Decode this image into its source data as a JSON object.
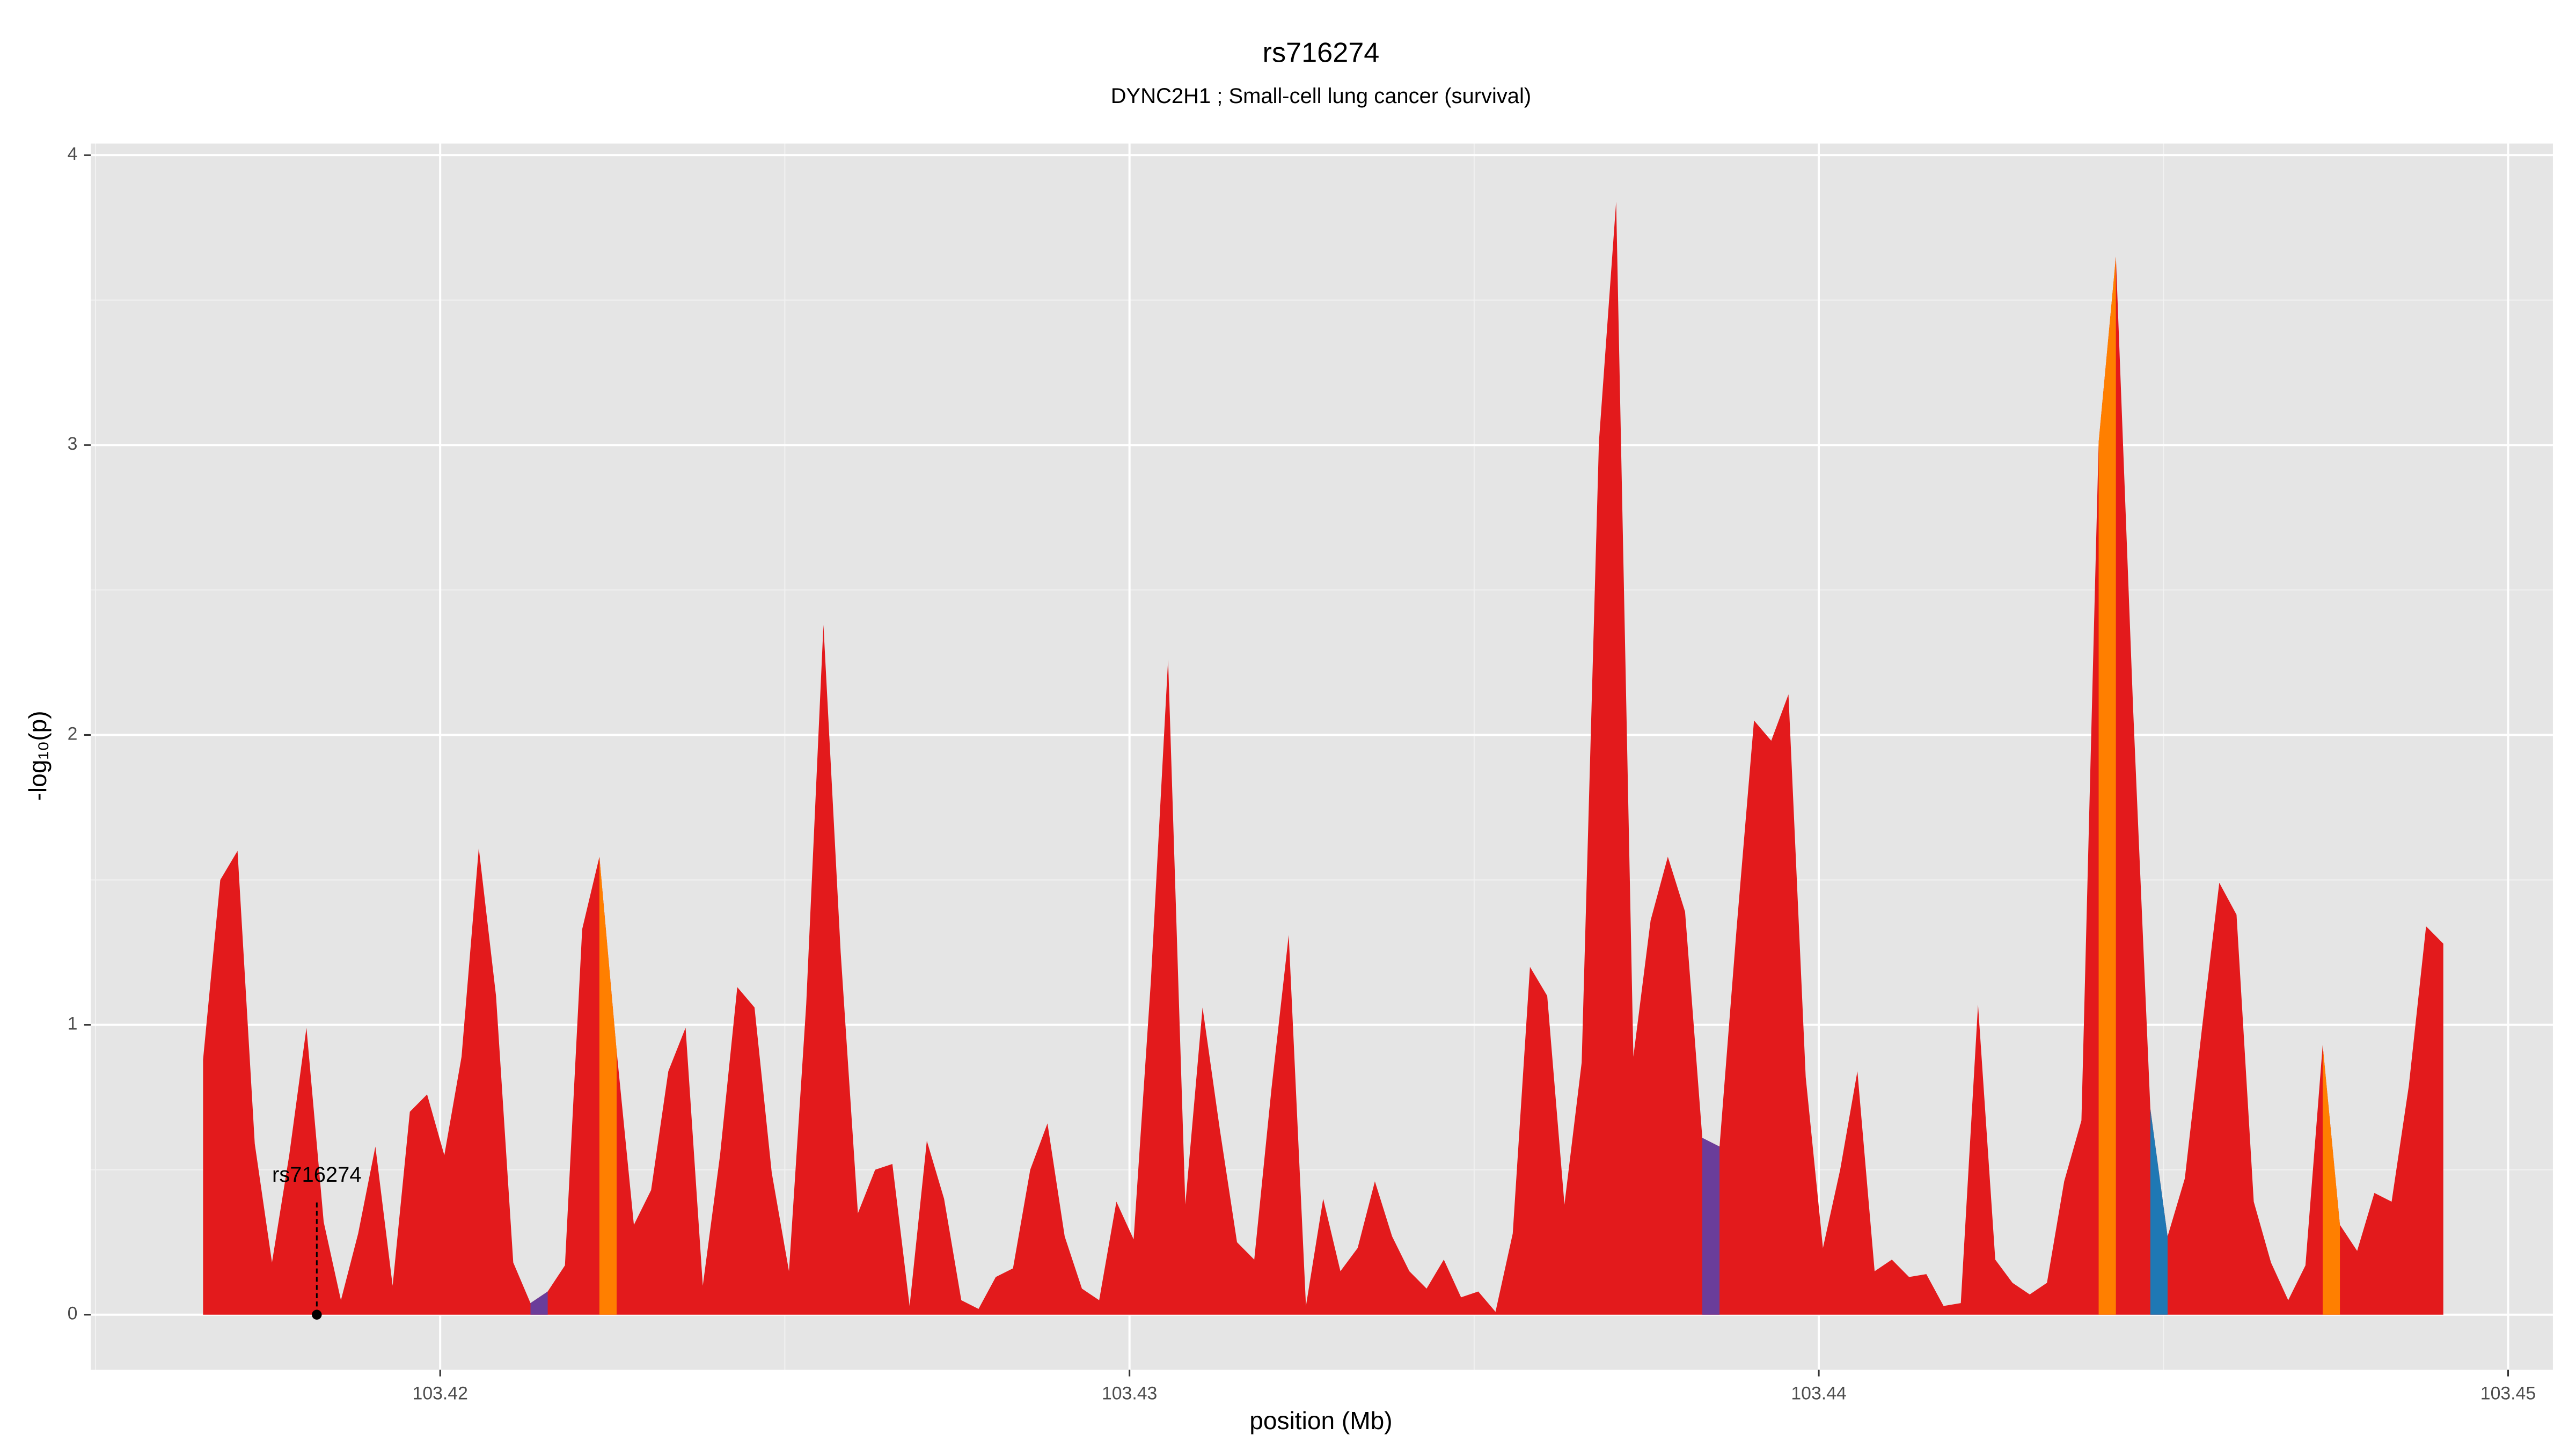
{
  "chart_data": {
    "type": "area",
    "title": "rs716274",
    "subtitle": "DYNC2H1 ; Small-cell lung cancer (survival)",
    "x_label": "position (Mb)",
    "y_label": "-log₁₀(p)",
    "xlim": [
      103.41493,
      103.45065
    ],
    "ylim": [
      -0.19,
      4.04
    ],
    "xticks": [
      103.42,
      103.43,
      103.44,
      103.45
    ],
    "yticks": [
      0,
      1,
      2,
      3,
      4
    ],
    "grid": true,
    "minor_grid": true,
    "series": [
      {
        "color": "#e31a1c",
        "x": [
          103.41656,
          103.41681,
          103.41706,
          103.41731,
          103.41756,
          103.41781,
          103.41806,
          103.41831,
          103.41856,
          103.41881,
          103.41906,
          103.41931,
          103.41956,
          103.41981,
          103.42006,
          103.42031,
          103.42056,
          103.42081,
          103.42106,
          103.42131,
          103.42156,
          103.42181,
          103.42206,
          103.42231,
          103.42256,
          103.42281,
          103.42306,
          103.42331,
          103.42356,
          103.42381,
          103.42406,
          103.42431,
          103.42456,
          103.42481,
          103.42506,
          103.42531,
          103.42556,
          103.42581,
          103.42606,
          103.42631,
          103.42656,
          103.42681,
          103.42706,
          103.42731,
          103.42756,
          103.42781,
          103.42806,
          103.42831,
          103.42856,
          103.42881,
          103.42906,
          103.42931,
          103.42956,
          103.42981,
          103.43006,
          103.43031,
          103.43056,
          103.43081,
          103.43106,
          103.43131,
          103.43156,
          103.43181,
          103.43206,
          103.43231,
          103.43256,
          103.43281,
          103.43306,
          103.43331,
          103.43356,
          103.43381,
          103.43406,
          103.43431,
          103.43456,
          103.43481,
          103.43506,
          103.43531,
          103.43556,
          103.43581,
          103.43606,
          103.43631,
          103.43656,
          103.43681,
          103.43706,
          103.43731,
          103.43756,
          103.43781,
          103.43806,
          103.43831,
          103.43856,
          103.43881,
          103.43906,
          103.43931,
          103.43956,
          103.43981,
          103.44006,
          103.44031,
          103.44056,
          103.44081,
          103.44106,
          103.44131,
          103.44156,
          103.44181,
          103.44206,
          103.44231,
          103.44256,
          103.44281,
          103.44306,
          103.44331,
          103.44356,
          103.44381,
          103.44406,
          103.44431,
          103.44456,
          103.44481,
          103.44506,
          103.44531,
          103.44556,
          103.44581,
          103.44606,
          103.44631,
          103.44656,
          103.44681,
          103.44706,
          103.44731,
          103.44756,
          103.44781,
          103.44806,
          103.44831,
          103.44856,
          103.44881,
          103.44906
        ],
        "values": [
          0.88,
          1.5,
          1.6,
          0.59,
          0.18,
          0.55,
          0.99,
          0.32,
          0.05,
          0.28,
          0.58,
          0.1,
          0.7,
          0.76,
          0.55,
          0.89,
          1.61,
          1.1,
          0.18,
          0.04,
          0.08,
          0.17,
          1.33,
          1.58,
          0.91,
          0.31,
          0.43,
          0.84,
          0.99,
          0.1,
          0.55,
          1.13,
          1.06,
          0.49,
          0.15,
          1.07,
          2.38,
          1.25,
          0.35,
          0.5,
          0.52,
          0.03,
          0.6,
          0.4,
          0.05,
          0.02,
          0.13,
          0.16,
          0.5,
          0.66,
          0.27,
          0.09,
          0.05,
          0.39,
          0.26,
          1.15,
          2.26,
          0.38,
          1.06,
          0.64,
          0.25,
          0.19,
          0.78,
          1.31,
          0.03,
          0.4,
          0.15,
          0.23,
          0.46,
          0.27,
          0.15,
          0.09,
          0.19,
          0.06,
          0.08,
          0.01,
          0.28,
          1.2,
          1.1,
          0.38,
          0.87,
          3.01,
          3.84,
          0.89,
          1.36,
          1.58,
          1.39,
          0.61,
          0.58,
          1.34,
          2.05,
          1.98,
          2.14,
          0.82,
          0.23,
          0.5,
          0.84,
          0.15,
          0.19,
          0.13,
          0.14,
          0.03,
          0.04,
          1.07,
          0.19,
          0.11,
          0.07,
          0.11,
          0.46,
          0.67,
          3.01,
          3.65,
          2.09,
          0.71,
          0.27,
          0.47,
          0.99,
          1.49,
          1.38,
          0.39,
          0.18,
          0.05,
          0.17,
          0.93,
          0.31,
          0.22,
          0.42,
          0.39,
          0.79,
          1.34,
          1.28
        ]
      },
      {
        "color": "#6a3d9a",
        "x": [
          103.42131,
          103.42156
        ],
        "values": [
          0.04,
          0.08
        ]
      },
      {
        "color": "#ff7f00",
        "x": [
          103.42231,
          103.42256
        ],
        "values": [
          1.58,
          0.91
        ]
      },
      {
        "color": "#6a3d9a",
        "x": [
          103.43831,
          103.43856
        ],
        "values": [
          0.61,
          0.58
        ]
      },
      {
        "color": "#ff7f00",
        "x": [
          103.44406,
          103.44431
        ],
        "values": [
          3.01,
          3.65
        ]
      },
      {
        "color": "#1f78b4",
        "x": [
          103.44481,
          103.44506
        ],
        "values": [
          0.71,
          0.27
        ]
      },
      {
        "color": "#ff7f00",
        "x": [
          103.44731,
          103.44756
        ],
        "values": [
          0.93,
          0.31
        ]
      }
    ],
    "annotation": {
      "text": "rs716274",
      "x": 103.41821,
      "y": 0
    }
  }
}
